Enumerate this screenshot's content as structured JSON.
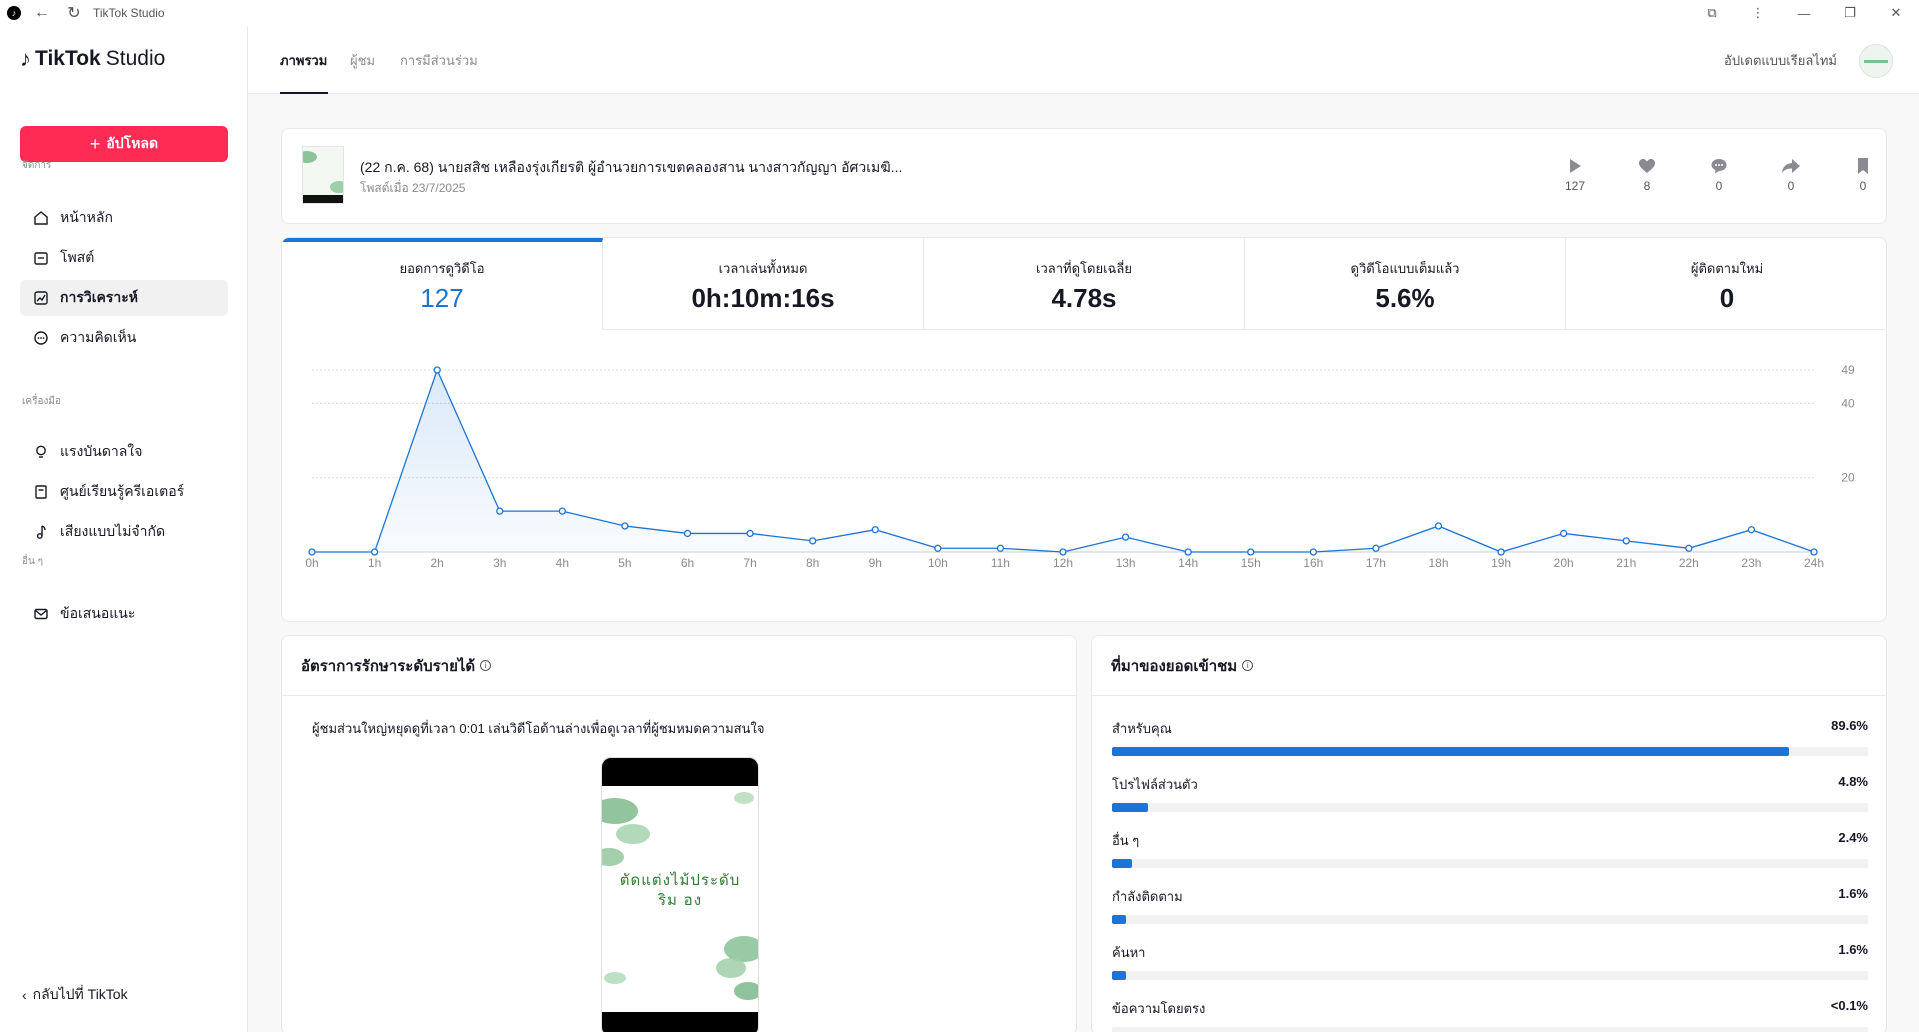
{
  "window": {
    "title": "TikTok Studio"
  },
  "brand": {
    "name": "TikTok",
    "suffix": "Studio"
  },
  "sidebar": {
    "upload_label": "อัปโหลด",
    "section_manage": "จัดการ",
    "section_tools": "เครื่องมือ",
    "section_other": "อื่น ๆ",
    "items": [
      {
        "label": "หน้าหลัก",
        "icon": "home-icon"
      },
      {
        "label": "โพสต์",
        "icon": "posts-icon"
      },
      {
        "label": "การวิเคราะห์",
        "icon": "analytics-icon",
        "active": true
      },
      {
        "label": "ความคิดเห็น",
        "icon": "comment-icon"
      },
      {
        "label": "แรงบันดาลใจ",
        "icon": "lightbulb-icon"
      },
      {
        "label": "ศูนย์เรียนรู้ครีเอเตอร์",
        "icon": "book-icon"
      },
      {
        "label": "เสียงแบบไม่จำกัด",
        "icon": "music-note-icon"
      },
      {
        "label": "ข้อเสนอแนะ",
        "icon": "mail-icon"
      }
    ],
    "back_label": "กลับไปที่ TikTok"
  },
  "header": {
    "tabs": [
      {
        "label": "ภาพรวม",
        "active": true
      },
      {
        "label": "ผู้ชม"
      },
      {
        "label": "การมีส่วนร่วม"
      }
    ],
    "realtime_label": "อัปเดตแบบเรียลไทม์"
  },
  "video": {
    "title": "(22 ก.ค. 68) นายสสิช เหลืองรุ่งเกียรติ ผู้อำนวยการเขตคลองสาน นางสาวกัญญา อัศวเมฆิ...",
    "posted": "โพสต์เมื่อ 23/7/2025",
    "stats": [
      {
        "icon": "play-icon",
        "value": "127"
      },
      {
        "icon": "heart-icon",
        "value": "8"
      },
      {
        "icon": "comment-icon",
        "value": "0"
      },
      {
        "icon": "share-icon",
        "value": "0"
      },
      {
        "icon": "bookmark-icon",
        "value": "0"
      }
    ]
  },
  "metrics": [
    {
      "label": "ยอดการดูวิดีโอ",
      "value": "127",
      "active": true
    },
    {
      "label": "เวลาเล่นทั้งหมด",
      "value": "0h:10m:16s"
    },
    {
      "label": "เวลาที่ดูโดยเฉลี่ย",
      "value": "4.78s"
    },
    {
      "label": "ดูวิดีโอแบบเต็มแล้ว",
      "value": "5.6%"
    },
    {
      "label": "ผู้ติดตามใหม่",
      "value": "0"
    }
  ],
  "chart_data": {
    "type": "area",
    "x": [
      "0h",
      "1h",
      "2h",
      "3h",
      "4h",
      "5h",
      "6h",
      "7h",
      "8h",
      "9h",
      "10h",
      "11h",
      "12h",
      "13h",
      "14h",
      "15h",
      "16h",
      "17h",
      "18h",
      "19h",
      "20h",
      "21h",
      "22h",
      "23h",
      "24h"
    ],
    "values": [
      0,
      0,
      49,
      11,
      11,
      7,
      5,
      5,
      3,
      6,
      1,
      1,
      0,
      4,
      0,
      0,
      0,
      1,
      7,
      0,
      5,
      3,
      1,
      6,
      0
    ],
    "y_ticks": [
      20,
      40,
      49
    ],
    "ylim": [
      0,
      49
    ],
    "grid": true,
    "color": "#1b74d6"
  },
  "retention": {
    "title": "อัตราการรักษาระดับรายได้",
    "text": "ผู้ชมส่วนใหญ่หยุดดูที่เวลา 0:01 เล่นวิดีโอด้านล่างเพื่อดูเวลาที่ผู้ชมหมดความสนใจ",
    "preview_line1": "ตัดแต่งไม้ประดับ",
    "preview_line2": "ริม   อง"
  },
  "sources": {
    "title": "ที่มาของยอดเข้าชม",
    "items": [
      {
        "label": "สำหรับคุณ",
        "value": "89.6%",
        "fraction": 0.896
      },
      {
        "label": "โปรไฟล์ส่วนตัว",
        "value": "4.8%",
        "fraction": 0.048
      },
      {
        "label": "อื่น ๆ",
        "value": "2.4%",
        "fraction": 0.024
      },
      {
        "label": "กำลังติดตาม",
        "value": "1.6%",
        "fraction": 0.016
      },
      {
        "label": "ค้นหา",
        "value": "1.6%",
        "fraction": 0.016
      },
      {
        "label": "ข้อความโดยตรง",
        "value": "<0.1%",
        "fraction": 0.001
      }
    ]
  }
}
